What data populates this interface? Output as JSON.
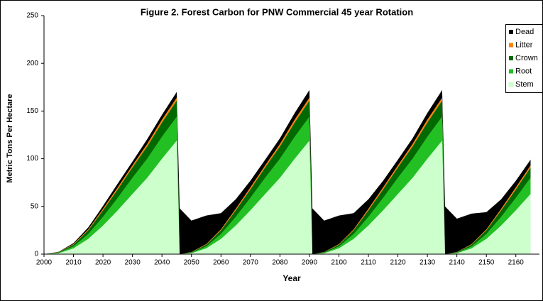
{
  "chart_data": {
    "type": "area",
    "stacked": true,
    "title": "Figure 2.   Forest Carbon for PNW Commercial 45 year Rotation",
    "x_label": "Year",
    "y_label": "Metric Tons Per Hectare",
    "x": [
      2000,
      2005,
      2010,
      2015,
      2020,
      2025,
      2030,
      2035,
      2040,
      2045,
      2046,
      2050,
      2055,
      2060,
      2065,
      2070,
      2075,
      2080,
      2085,
      2090,
      2091,
      2095,
      2100,
      2105,
      2110,
      2115,
      2120,
      2125,
      2130,
      2135,
      2136,
      2140,
      2145,
      2150,
      2155,
      2160,
      2165
    ],
    "series": [
      {
        "name": "Stem",
        "color": "#ccffcc",
        "values": [
          0,
          1,
          6,
          16,
          30,
          46,
          63,
          80,
          100,
          119,
          0,
          1,
          6,
          16,
          30,
          46,
          63,
          80,
          100,
          119,
          0,
          1,
          6,
          16,
          30,
          46,
          63,
          80,
          100,
          119,
          0,
          1,
          6,
          16,
          30,
          46,
          63
        ]
      },
      {
        "name": "Root",
        "color": "#22c022",
        "values": [
          0,
          0.5,
          2,
          5,
          9,
          13,
          17,
          20,
          23,
          25,
          0,
          0.5,
          2,
          5,
          9,
          13,
          17,
          20,
          23,
          25,
          0,
          0.5,
          2,
          5,
          9,
          13,
          17,
          20,
          23,
          25,
          0,
          0.5,
          2,
          5,
          9,
          13,
          17
        ]
      },
      {
        "name": "Crown",
        "color": "#006a00",
        "values": [
          0,
          0.5,
          2,
          4,
          7,
          9,
          11,
          13,
          15,
          17,
          0,
          0.5,
          2,
          4,
          7,
          9,
          11,
          13,
          15,
          17,
          0,
          0.5,
          2,
          4,
          7,
          9,
          11,
          13,
          15,
          17,
          0,
          0.5,
          2,
          4,
          7,
          9,
          11
        ]
      },
      {
        "name": "Litter",
        "color": "#ff8000",
        "values": [
          0,
          0.2,
          0.5,
          1,
          1.5,
          2,
          2,
          2.5,
          3,
          3,
          0,
          0.2,
          0.5,
          1,
          1.5,
          2,
          2,
          2.5,
          3,
          3,
          0,
          0.2,
          0.5,
          1,
          1.5,
          2,
          2,
          2.5,
          3,
          3,
          0,
          0.2,
          0.5,
          1,
          1.5,
          2,
          2
        ]
      },
      {
        "name": "Dead",
        "color": "#000000",
        "values": [
          0,
          0.3,
          1,
          2,
          3,
          4,
          4,
          5,
          5,
          6,
          48,
          33,
          30,
          17,
          10,
          7,
          6,
          6,
          7,
          8,
          48,
          33,
          30,
          17,
          10,
          7,
          6,
          6,
          7,
          8,
          50,
          35,
          32,
          18,
          10,
          7,
          6
        ]
      }
    ],
    "xlim": [
      2000,
      2168
    ],
    "ylim": [
      0,
      250
    ],
    "xticks": [
      2000,
      2010,
      2020,
      2030,
      2040,
      2050,
      2060,
      2070,
      2080,
      2090,
      2100,
      2110,
      2120,
      2130,
      2140,
      2150,
      2160
    ],
    "yticks": [
      0,
      50,
      100,
      150,
      200,
      250
    ],
    "legend": "top-right",
    "grid": false
  }
}
